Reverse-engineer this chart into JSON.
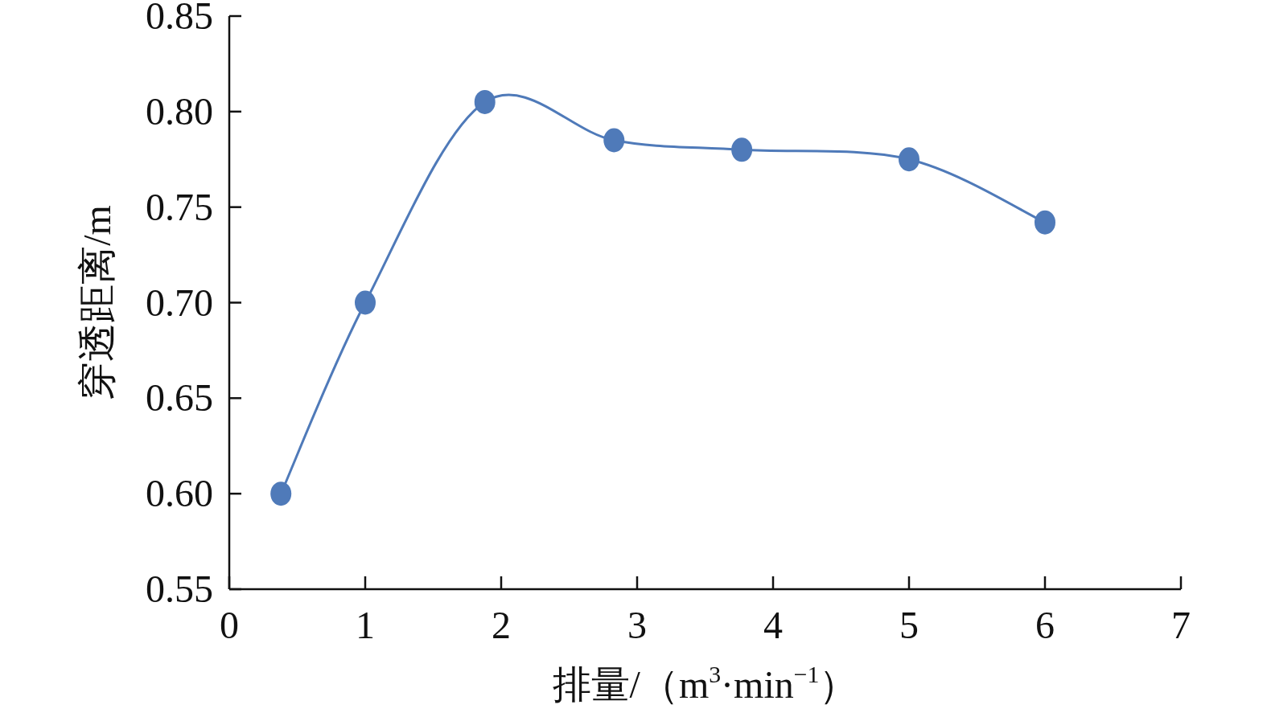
{
  "chart_data": {
    "type": "line",
    "xlabel": "排量/（m$^{3}$·min$^{−1}$）",
    "ylabel": "穿透距离/m",
    "x": [
      0.38,
      1,
      1.88,
      2.83,
      3.77,
      5,
      6
    ],
    "series": [
      {
        "color": "#4f7ab9",
        "values": [
          0.6,
          0.7,
          0.805,
          0.785,
          0.78,
          0.775,
          0.742
        ]
      }
    ],
    "xlim": [
      0,
      7
    ],
    "ylim": [
      0.55,
      0.85
    ],
    "xticks": [
      0,
      1,
      2,
      3,
      4,
      5,
      6,
      7
    ],
    "yticks": [
      0.55,
      {
        "value": 0.6,
        "label": "0.60"
      },
      0.65,
      {
        "value": 0.7,
        "label": "0.70"
      },
      0.75,
      {
        "value": 0.8,
        "label": "0.80"
      },
      0.85
    ],
    "marker": "circle",
    "line_style": "solid",
    "grid": false
  }
}
